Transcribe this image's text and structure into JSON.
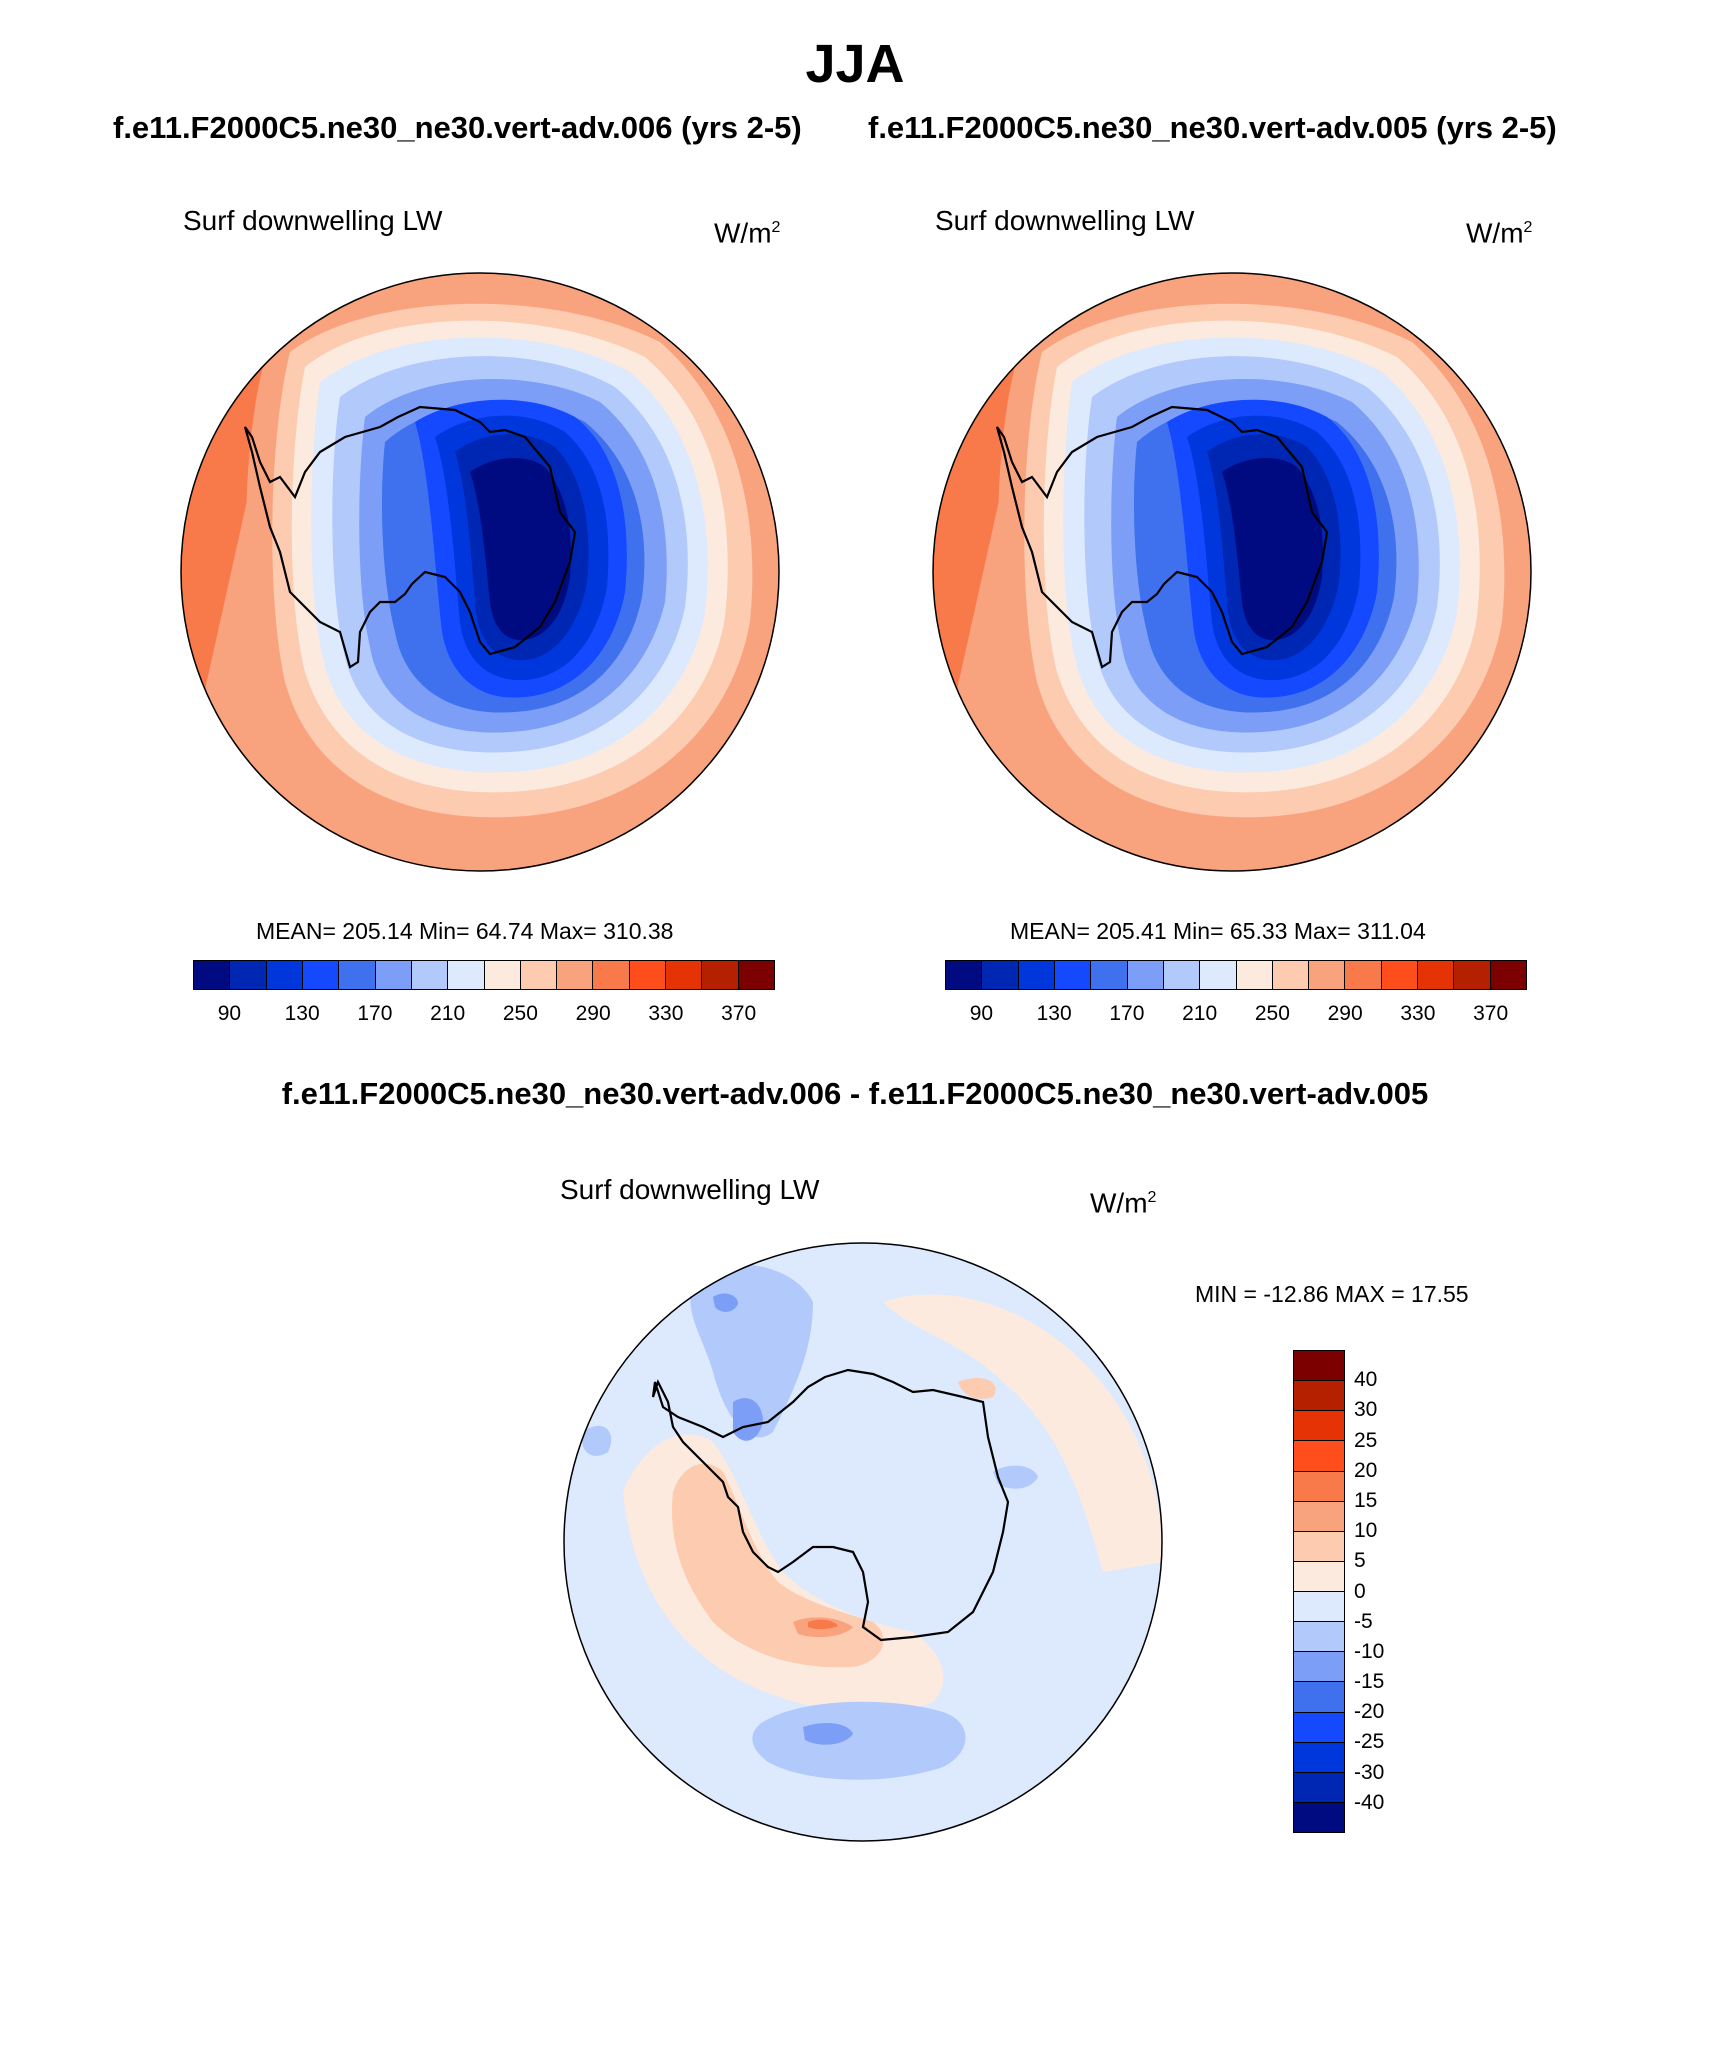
{
  "title": "JJA",
  "case_left": "f.e11.F2000C5.ne30_ne30.vert-adv.006 (yrs 2-5)",
  "case_right": "f.e11.F2000C5.ne30_ne30.vert-adv.005 (yrs 2-5)",
  "diff_title": "f.e11.F2000C5.ne30_ne30.vert-adv.006 - f.e11.F2000C5.ne30_ne30.vert-adv.005",
  "panels": {
    "left": {
      "variable": "Surf downwelling LW",
      "unit_base": "W/m",
      "unit_exp": "2",
      "stats": "MEAN= 205.14  Min=  64.74  Max= 310.38"
    },
    "right": {
      "variable": "Surf downwelling LW",
      "unit_base": "W/m",
      "unit_exp": "2",
      "stats": "MEAN= 205.41  Min=  65.33  Max= 311.04"
    },
    "diff": {
      "variable": "Surf downwelling LW",
      "unit_base": "W/m",
      "unit_exp": "2",
      "stats": "MIN = -12.86 MAX =  17.55"
    }
  },
  "colorbar_main": {
    "colors": [
      "#000b82",
      "#0026b4",
      "#0037dc",
      "#1449ff",
      "#3f71ef",
      "#7c9ef6",
      "#b1c9fb",
      "#dde9fd",
      "#fdeadf",
      "#fccbb0",
      "#f9a27e",
      "#f87a4a",
      "#ff4d1c",
      "#e53306",
      "#b52000",
      "#7c0000"
    ],
    "labels": [
      "90",
      "130",
      "170",
      "210",
      "250",
      "290",
      "330",
      "370"
    ]
  },
  "colorbar_diff": {
    "colors_top_to_bottom": [
      "#7c0000",
      "#b52000",
      "#e53306",
      "#ff4d1c",
      "#f87a4a",
      "#f9a27e",
      "#fccbb0",
      "#fdeadf",
      "#dde9fd",
      "#b1c9fb",
      "#7c9ef6",
      "#3f71ef",
      "#1449ff",
      "#0037dc",
      "#0026b4",
      "#000b82"
    ],
    "labels": [
      "40",
      "30",
      "25",
      "20",
      "15",
      "10",
      "5",
      "0",
      "-5",
      "-10",
      "-15",
      "-20",
      "-25",
      "-30",
      "-40"
    ]
  }
}
